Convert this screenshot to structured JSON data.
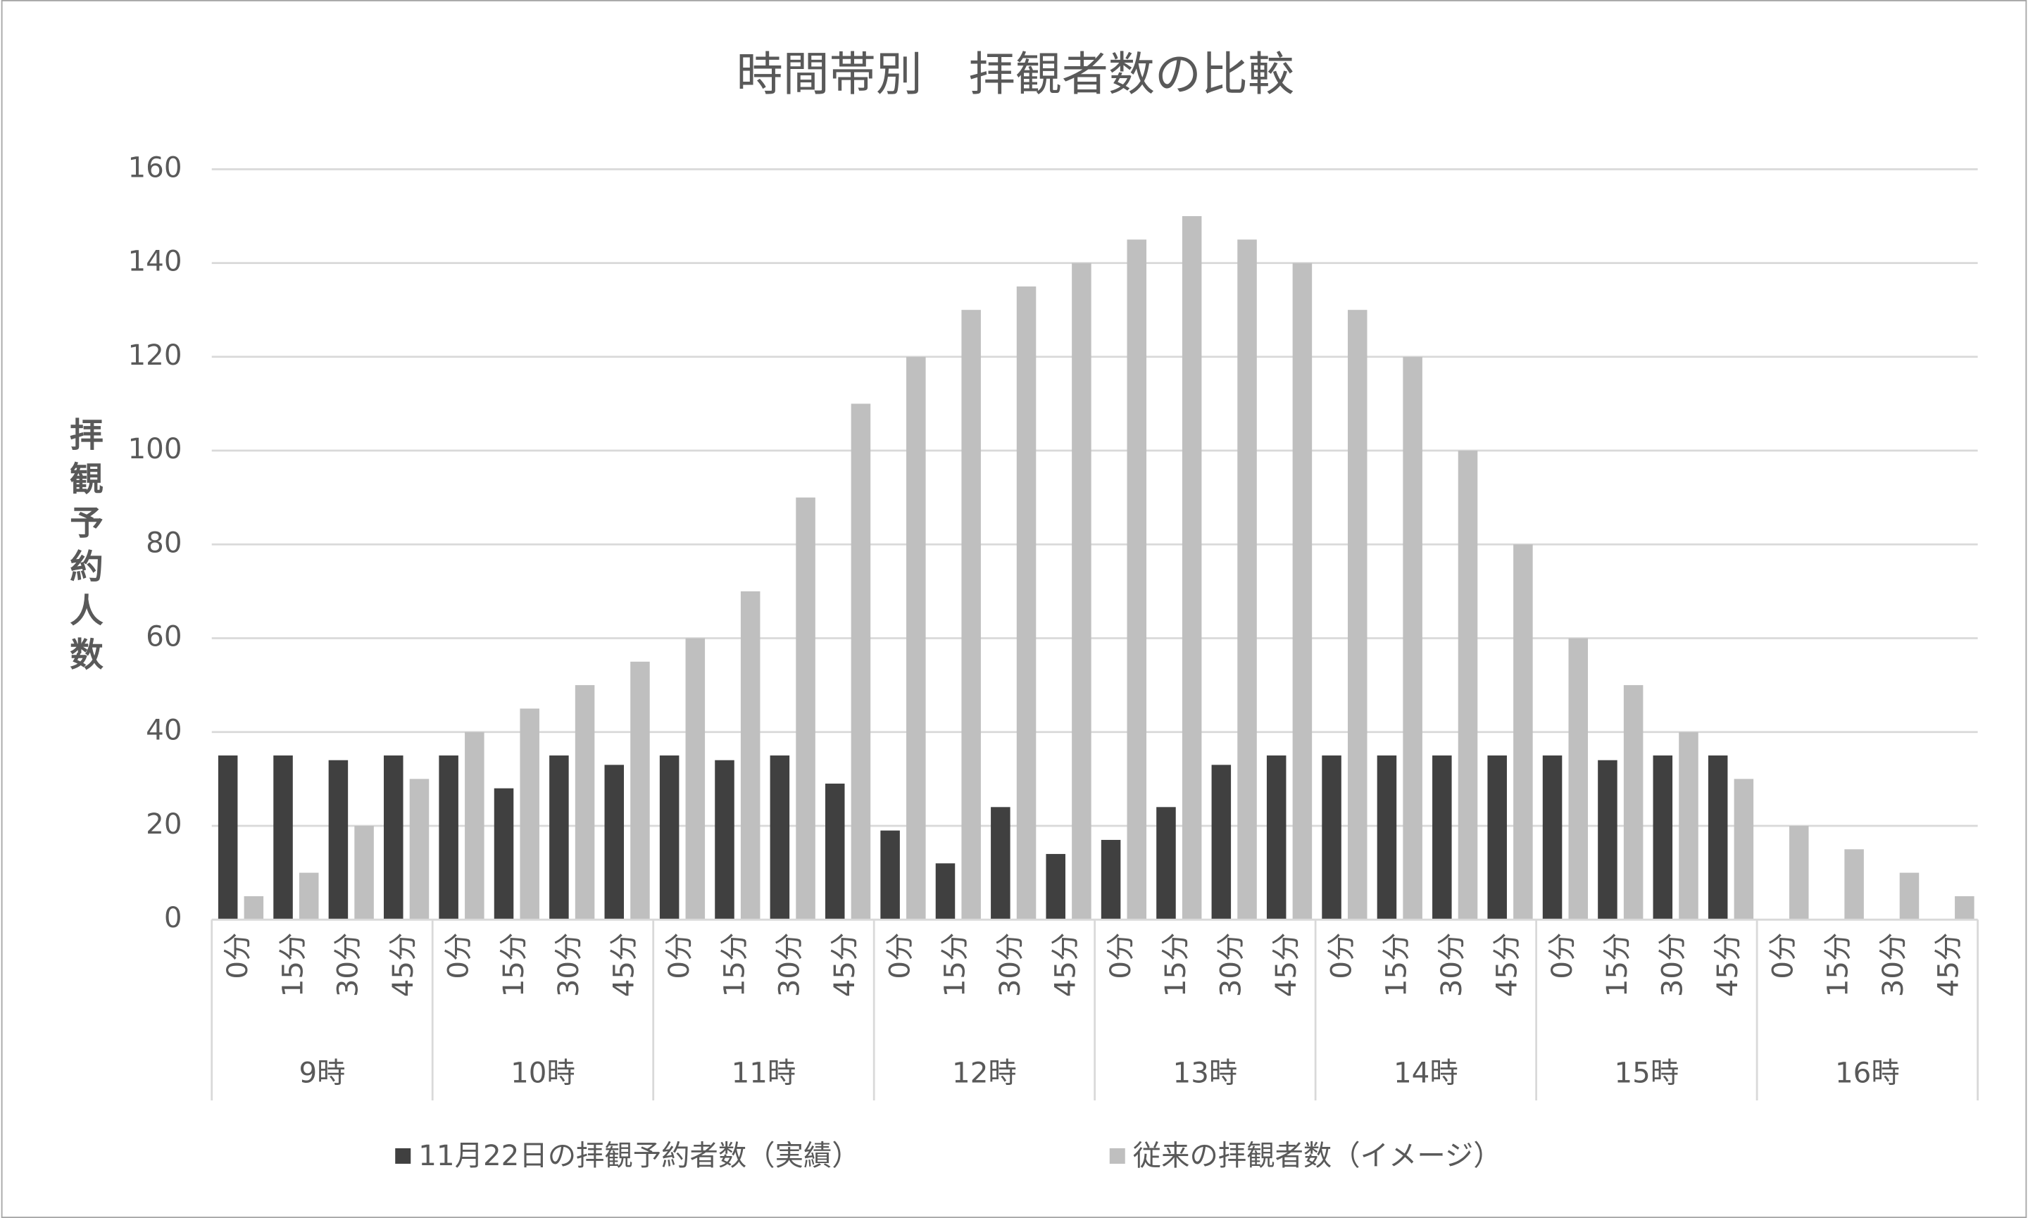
{
  "chart_data": {
    "type": "bar",
    "title": "時間帯別　拝観者数の比較",
    "y_label": "拝観予約人数",
    "groups": [
      "9時",
      "10時",
      "11時",
      "12時",
      "13時",
      "14時",
      "15時",
      "16時"
    ],
    "categories": [
      "0分",
      "15分",
      "30分",
      "45分",
      "0分",
      "15分",
      "30分",
      "45分",
      "0分",
      "15分",
      "30分",
      "45分",
      "0分",
      "15分",
      "30分",
      "45分",
      "0分",
      "15分",
      "30分",
      "45分",
      "0分",
      "15分",
      "30分",
      "45分",
      "0分",
      "15分",
      "30分",
      "45分",
      "0分",
      "15分",
      "30分",
      "45分"
    ],
    "series": [
      {
        "name": "11月22日の拝観予約者数（実績）",
        "color": "#404040",
        "values": [
          35,
          35,
          34,
          35,
          35,
          28,
          35,
          33,
          35,
          34,
          35,
          29,
          19,
          12,
          24,
          14,
          17,
          24,
          33,
          35,
          35,
          35,
          35,
          35,
          35,
          34,
          35,
          35,
          null,
          null,
          null,
          null
        ]
      },
      {
        "name": "従来の拝観者数（イメージ）",
        "color": "#bfbfbf",
        "values": [
          5,
          10,
          20,
          30,
          40,
          45,
          50,
          55,
          60,
          70,
          90,
          110,
          120,
          130,
          135,
          140,
          145,
          150,
          145,
          140,
          130,
          120,
          100,
          80,
          60,
          50,
          40,
          30,
          20,
          15,
          10,
          5
        ]
      }
    ],
    "ylim": [
      0,
      160
    ],
    "yticks": [
      0,
      20,
      40,
      60,
      80,
      100,
      120,
      140,
      160
    ],
    "grid": true,
    "legend": "bottom"
  }
}
